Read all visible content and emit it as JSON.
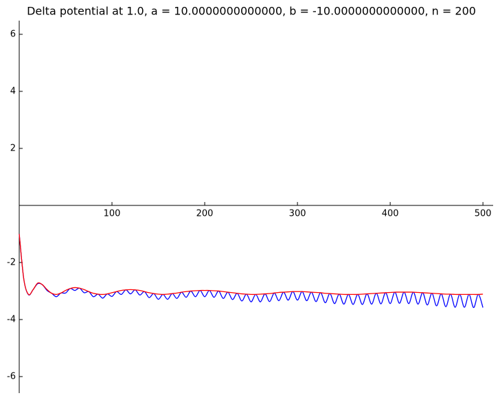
{
  "chart_data": {
    "type": "line",
    "title": "Delta potential at 1.0, a = 10.0000000000000, b = -10.0000000000000, n = 200",
    "x": [
      0,
      5,
      10,
      15,
      20,
      25,
      30,
      35,
      40,
      45,
      50,
      55,
      60,
      65,
      70,
      75,
      80,
      85,
      90,
      95,
      100,
      105,
      110,
      115,
      120,
      125,
      130,
      135,
      140,
      145,
      150,
      155,
      160,
      165,
      170,
      175,
      180,
      185,
      190,
      195,
      200,
      205,
      210,
      215,
      220,
      225,
      230,
      235,
      240,
      245,
      250,
      255,
      260,
      265,
      270,
      275,
      280,
      285,
      290,
      295,
      300,
      305,
      310,
      315,
      320,
      325,
      330,
      335,
      340,
      345,
      350,
      355,
      360,
      365,
      370,
      375,
      380,
      385,
      390,
      395,
      400,
      405,
      410,
      415,
      420,
      425,
      430,
      435,
      440,
      445,
      450,
      455,
      460,
      465,
      470,
      475,
      480,
      485,
      490,
      495,
      500
    ],
    "series": [
      {
        "color": "#0000ff",
        "values": [
          -1.0,
          -2.6,
          -3.13,
          -2.95,
          -2.74,
          -2.78,
          -2.98,
          -3.08,
          -3.2,
          -3.07,
          -3.07,
          -2.91,
          -2.98,
          -2.9,
          -3.06,
          -3.02,
          -3.2,
          -3.11,
          -3.25,
          -3.1,
          -3.19,
          -3.02,
          -3.12,
          -2.96,
          -3.1,
          -2.96,
          -3.14,
          -3.02,
          -3.23,
          -3.09,
          -3.29,
          -3.12,
          -3.29,
          -3.09,
          -3.26,
          -3.04,
          -3.22,
          -3.0,
          -3.2,
          -2.98,
          -3.2,
          -2.98,
          -3.22,
          -3.0,
          -3.26,
          -3.04,
          -3.3,
          -3.08,
          -3.35,
          -3.11,
          -3.38,
          -3.12,
          -3.38,
          -3.1,
          -3.37,
          -3.07,
          -3.34,
          -3.04,
          -3.32,
          -3.02,
          -3.32,
          -3.02,
          -3.34,
          -3.04,
          -3.37,
          -3.06,
          -3.41,
          -3.09,
          -3.44,
          -3.11,
          -3.46,
          -3.12,
          -3.47,
          -3.12,
          -3.47,
          -3.1,
          -3.46,
          -3.08,
          -3.45,
          -3.06,
          -3.44,
          -3.04,
          -3.43,
          -3.04,
          -3.44,
          -3.04,
          -3.46,
          -3.06,
          -3.49,
          -3.08,
          -3.52,
          -3.1,
          -3.55,
          -3.11,
          -3.57,
          -3.12,
          -3.57,
          -3.12,
          -3.58,
          -3.12,
          -3.58
        ]
      },
      {
        "color": "#ff0000",
        "values": [
          -1.0,
          -2.6,
          -3.12,
          -2.95,
          -2.72,
          -2.78,
          -2.95,
          -3.08,
          -3.12,
          -3.07,
          -2.98,
          -2.91,
          -2.88,
          -2.9,
          -2.95,
          -3.02,
          -3.08,
          -3.11,
          -3.12,
          -3.1,
          -3.06,
          -3.02,
          -2.98,
          -2.96,
          -2.95,
          -2.96,
          -2.98,
          -3.02,
          -3.06,
          -3.09,
          -3.11,
          -3.12,
          -3.11,
          -3.09,
          -3.07,
          -3.04,
          -3.02,
          -3.0,
          -2.99,
          -2.98,
          -2.98,
          -2.98,
          -2.99,
          -3.0,
          -3.02,
          -3.04,
          -3.06,
          -3.08,
          -3.1,
          -3.11,
          -3.12,
          -3.12,
          -3.11,
          -3.1,
          -3.09,
          -3.07,
          -3.05,
          -3.04,
          -3.03,
          -3.02,
          -3.02,
          -3.02,
          -3.03,
          -3.04,
          -3.05,
          -3.06,
          -3.08,
          -3.09,
          -3.1,
          -3.11,
          -3.12,
          -3.12,
          -3.12,
          -3.12,
          -3.11,
          -3.1,
          -3.09,
          -3.08,
          -3.07,
          -3.06,
          -3.05,
          -3.04,
          -3.04,
          -3.04,
          -3.04,
          -3.04,
          -3.05,
          -3.06,
          -3.07,
          -3.08,
          -3.09,
          -3.1,
          -3.11,
          -3.11,
          -3.12,
          -3.12,
          -3.12,
          -3.12,
          -3.12,
          -3.12,
          -3.11
        ]
      }
    ],
    "xlim": [
      0,
      511
    ],
    "ylim": [
      -6.58,
      6.48
    ],
    "xticks": [
      100,
      200,
      300,
      400,
      500
    ],
    "yticks": [
      -6,
      -4,
      -2,
      2,
      4,
      6
    ]
  }
}
